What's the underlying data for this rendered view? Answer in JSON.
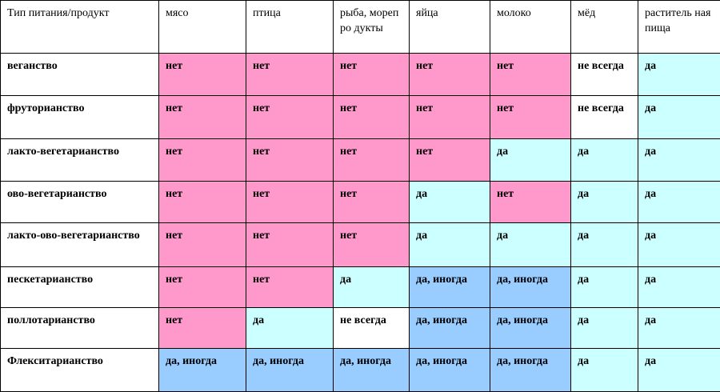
{
  "header": [
    "Тип питания/продукт",
    "мясо",
    "птица",
    "рыба, морепродукты",
    "яйца",
    "молоко",
    "мёд",
    "растительная пища"
  ],
  "header_display": [
    "Тип питания/продукт",
    "мясо",
    "птица",
    "рыба, морепро дукты",
    "яйца",
    "молоко",
    "мёд",
    "раститель ная пища"
  ],
  "colors": {
    "no": "#ff99cc",
    "yes": "#ccffff",
    "sometimes": "#99ccff",
    "plain": "#ffffff",
    "border": "#000000"
  },
  "rows": [
    {
      "label": "веганство",
      "cells": [
        "нет",
        "нет",
        "нет",
        "нет",
        "нет",
        "не всегда",
        "да"
      ]
    },
    {
      "label": "фруторианство",
      "cells": [
        "нет",
        "нет",
        "нет",
        "нет",
        "нет",
        "не всегда",
        "да"
      ]
    },
    {
      "label": "лакто-вегетарианство",
      "cells": [
        "нет",
        "нет",
        "нет",
        "нет",
        "да",
        "да",
        "да"
      ]
    },
    {
      "label": "ово-вегетарианство",
      "cells": [
        "нет",
        "нет",
        "нет",
        "да",
        "нет",
        "да",
        "да"
      ]
    },
    {
      "label": "лакто-ово-вегетарианство",
      "cells": [
        "нет",
        "нет",
        "нет",
        "да",
        "да",
        "да",
        "да"
      ]
    },
    {
      "label": "пескетарианство",
      "cells": [
        "нет",
        "нет",
        "да",
        "да, иногда",
        "да, иногда",
        "да",
        "да"
      ]
    },
    {
      "label": "поллотарианство",
      "cells": [
        "нет",
        "да",
        "не всегда",
        "да, иногда",
        "да, иногда",
        "да",
        "да"
      ]
    },
    {
      "label": "Флекситарианство",
      "cells": [
        "да, иногда",
        "да, иногда",
        "да, иногда",
        "да, иногда",
        "да, иногда",
        "да",
        "да"
      ]
    }
  ]
}
